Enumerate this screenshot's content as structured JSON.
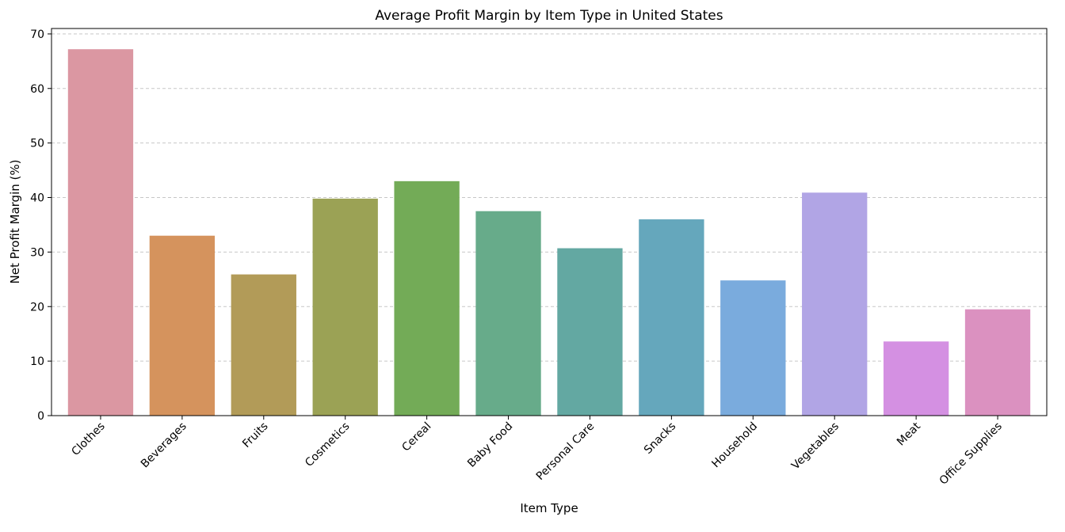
{
  "chart_data": {
    "type": "bar",
    "title": "Average Profit Margin by Item Type in United States",
    "xlabel": "Item Type",
    "ylabel": "Net Profit Margin (%)",
    "ylim": [
      0,
      71
    ],
    "yticks": [
      0,
      10,
      20,
      30,
      40,
      50,
      60,
      70
    ],
    "grid": "y-dashed",
    "categories": [
      "Clothes",
      "Beverages",
      "Fruits",
      "Cosmetics",
      "Cereal",
      "Baby Food",
      "Personal Care",
      "Snacks",
      "Household",
      "Vegetables",
      "Meat",
      "Office Supplies"
    ],
    "values": [
      67.2,
      33.0,
      25.9,
      39.8,
      43.0,
      37.5,
      30.7,
      36.0,
      24.8,
      40.9,
      13.6,
      19.5
    ],
    "colors": [
      "#db97a2",
      "#d5935d",
      "#b29b58",
      "#9ba255",
      "#73ab57",
      "#67ab8a",
      "#63a8a2",
      "#65a7bc",
      "#7aabdd",
      "#b1a5e5",
      "#d490e2",
      "#db91c0"
    ]
  }
}
